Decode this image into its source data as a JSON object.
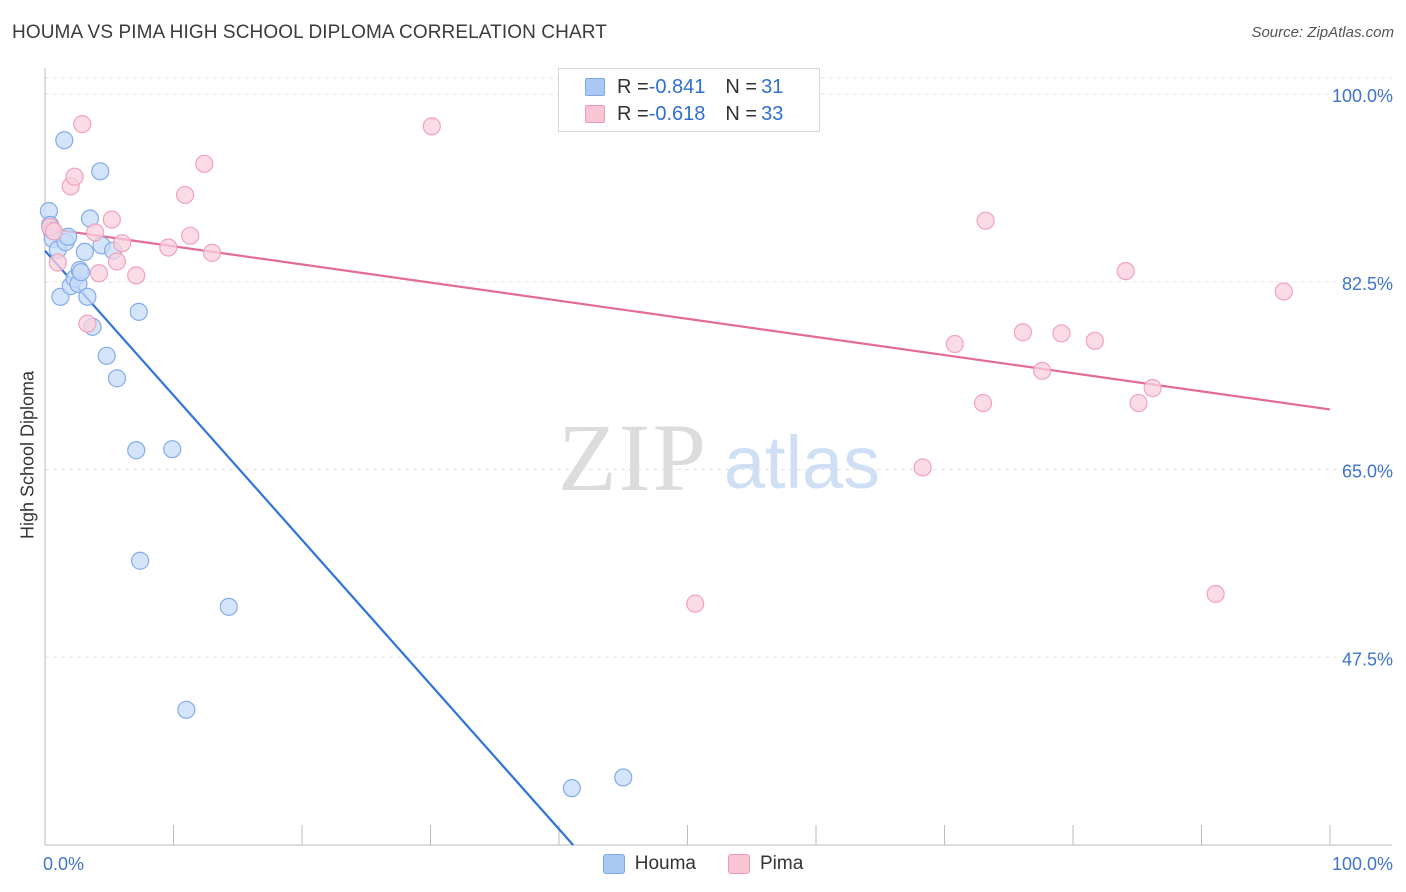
{
  "title": "HOUMA VS PIMA HIGH SCHOOL DIPLOMA CORRELATION CHART",
  "source": "Source: ZipAtlas.com",
  "watermark": {
    "zip": "ZIP",
    "atlas": "atlas"
  },
  "stats": [
    {
      "r_label": "R = ",
      "r_value": "-0.841",
      "n_label": "N = ",
      "n_value": "31",
      "color": "#a9c8f3",
      "border": "#7ea9e8"
    },
    {
      "r_label": "R = ",
      "r_value": "-0.618",
      "n_label": "N = ",
      "n_value": "33",
      "color": "#f9c4d4",
      "border": "#f09bb6"
    }
  ],
  "legend": [
    {
      "label": "Houma",
      "color": "#a9c8f3",
      "border": "#7ea9e8"
    },
    {
      "label": "Pima",
      "color": "#f9c4d4",
      "border": "#f09bb6"
    }
  ],
  "chart_data": {
    "type": "scatter",
    "title": "HOUMA VS PIMA HIGH SCHOOL DIPLOMA CORRELATION CHART",
    "xlabel": "",
    "ylabel": "High School Diploma",
    "xlim": [
      0,
      100
    ],
    "ylim": [
      30,
      101.5
    ],
    "x_tick_labels": [
      "0.0%",
      "100.0%"
    ],
    "y_ticks": [
      {
        "value": 100,
        "label": "100.0%"
      },
      {
        "value": 82.5,
        "label": "82.5%"
      },
      {
        "value": 65,
        "label": "65.0%"
      },
      {
        "value": 47.5,
        "label": "47.5%"
      }
    ],
    "grid": true,
    "series": [
      {
        "name": "Houma",
        "color": "#2f74d8",
        "fill": "#c5dbf8",
        "stroke": "#84acea",
        "points": [
          [
            0.3,
            89.1
          ],
          [
            0.4,
            87.8
          ],
          [
            0.5,
            87.3
          ],
          [
            0.6,
            86.5
          ],
          [
            1.0,
            85.5
          ],
          [
            1.2,
            81.1
          ],
          [
            1.5,
            95.7
          ],
          [
            1.6,
            86.2
          ],
          [
            1.8,
            86.7
          ],
          [
            2.0,
            82.1
          ],
          [
            2.3,
            82.8
          ],
          [
            2.6,
            82.3
          ],
          [
            2.7,
            83.6
          ],
          [
            2.8,
            83.4
          ],
          [
            3.1,
            85.3
          ],
          [
            3.3,
            81.1
          ],
          [
            3.5,
            88.4
          ],
          [
            3.7,
            78.3
          ],
          [
            4.3,
            92.8
          ],
          [
            4.4,
            85.9
          ],
          [
            4.8,
            75.6
          ],
          [
            5.3,
            85.4
          ],
          [
            5.6,
            73.5
          ],
          [
            7.3,
            79.7
          ],
          [
            7.1,
            66.8
          ],
          [
            9.9,
            66.9
          ],
          [
            7.4,
            56.5
          ],
          [
            14.3,
            52.2
          ],
          [
            11.0,
            42.6
          ],
          [
            41.0,
            35.3
          ],
          [
            45.0,
            36.3
          ]
        ],
        "trend": [
          [
            0,
            85.4
          ],
          [
            41.1,
            30
          ]
        ]
      },
      {
        "name": "Pima",
        "color": "#e46b95",
        "fill": "#fad0dd",
        "stroke": "#f0a3bc",
        "points": [
          [
            0.4,
            87.6
          ],
          [
            0.7,
            87.2
          ],
          [
            1.0,
            84.3
          ],
          [
            2.0,
            91.4
          ],
          [
            2.3,
            92.3
          ],
          [
            2.9,
            97.2
          ],
          [
            3.3,
            78.6
          ],
          [
            3.9,
            87.1
          ],
          [
            4.2,
            83.3
          ],
          [
            5.2,
            88.3
          ],
          [
            5.6,
            84.4
          ],
          [
            6.0,
            86.1
          ],
          [
            7.1,
            83.1
          ],
          [
            9.6,
            85.7
          ],
          [
            10.9,
            90.6
          ],
          [
            11.3,
            86.8
          ],
          [
            12.4,
            93.5
          ],
          [
            13.0,
            85.2
          ],
          [
            30.1,
            97.0
          ],
          [
            68.3,
            65.2
          ],
          [
            70.8,
            76.7
          ],
          [
            73.0,
            71.2
          ],
          [
            73.2,
            88.2
          ],
          [
            76.1,
            77.8
          ],
          [
            77.6,
            74.2
          ],
          [
            79.1,
            77.7
          ],
          [
            81.7,
            77.0
          ],
          [
            84.1,
            83.5
          ],
          [
            85.1,
            71.2
          ],
          [
            86.2,
            72.6
          ],
          [
            91.1,
            53.4
          ],
          [
            96.4,
            81.6
          ],
          [
            50.6,
            52.5
          ]
        ],
        "trend": [
          [
            0,
            87.5
          ],
          [
            100,
            70.6
          ]
        ]
      }
    ]
  }
}
